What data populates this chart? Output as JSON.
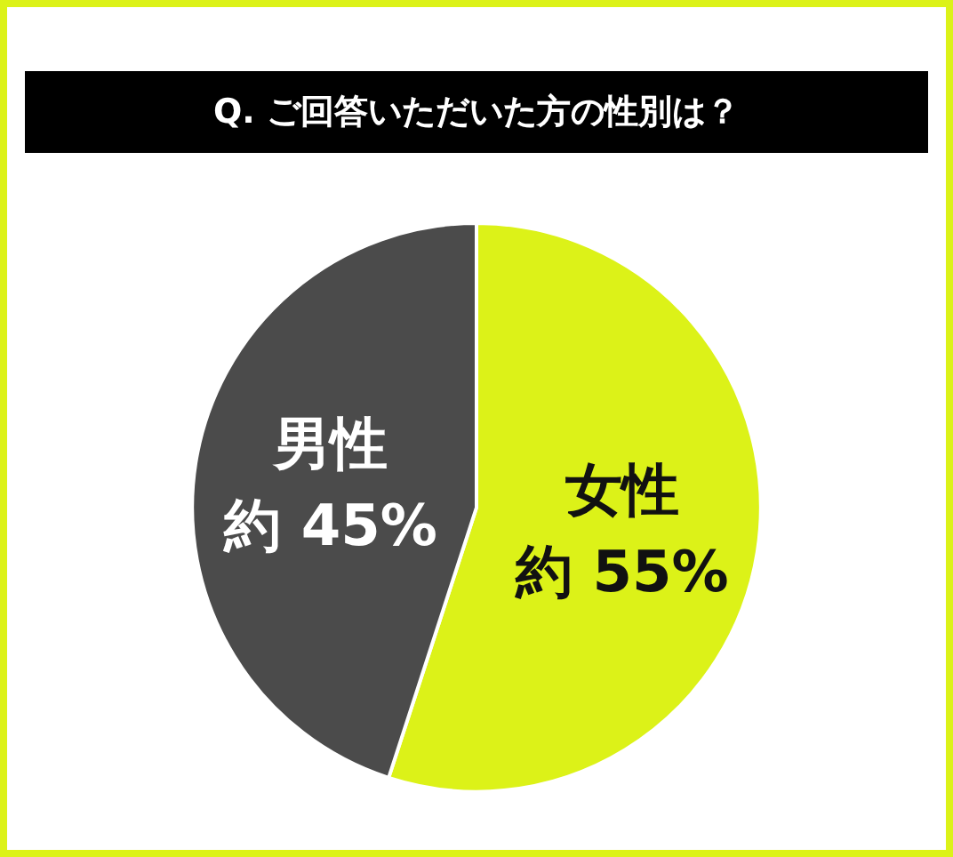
{
  "chart_data": {
    "type": "pie",
    "title": "Q. ご回答いただいた方の性別は？",
    "categories": [
      "女性",
      "男性"
    ],
    "values": [
      55,
      45
    ],
    "colors": [
      "#dcf218",
      "#4b4b4b"
    ],
    "value_labels": [
      "約 55%",
      "約 45%"
    ],
    "legend": false
  }
}
